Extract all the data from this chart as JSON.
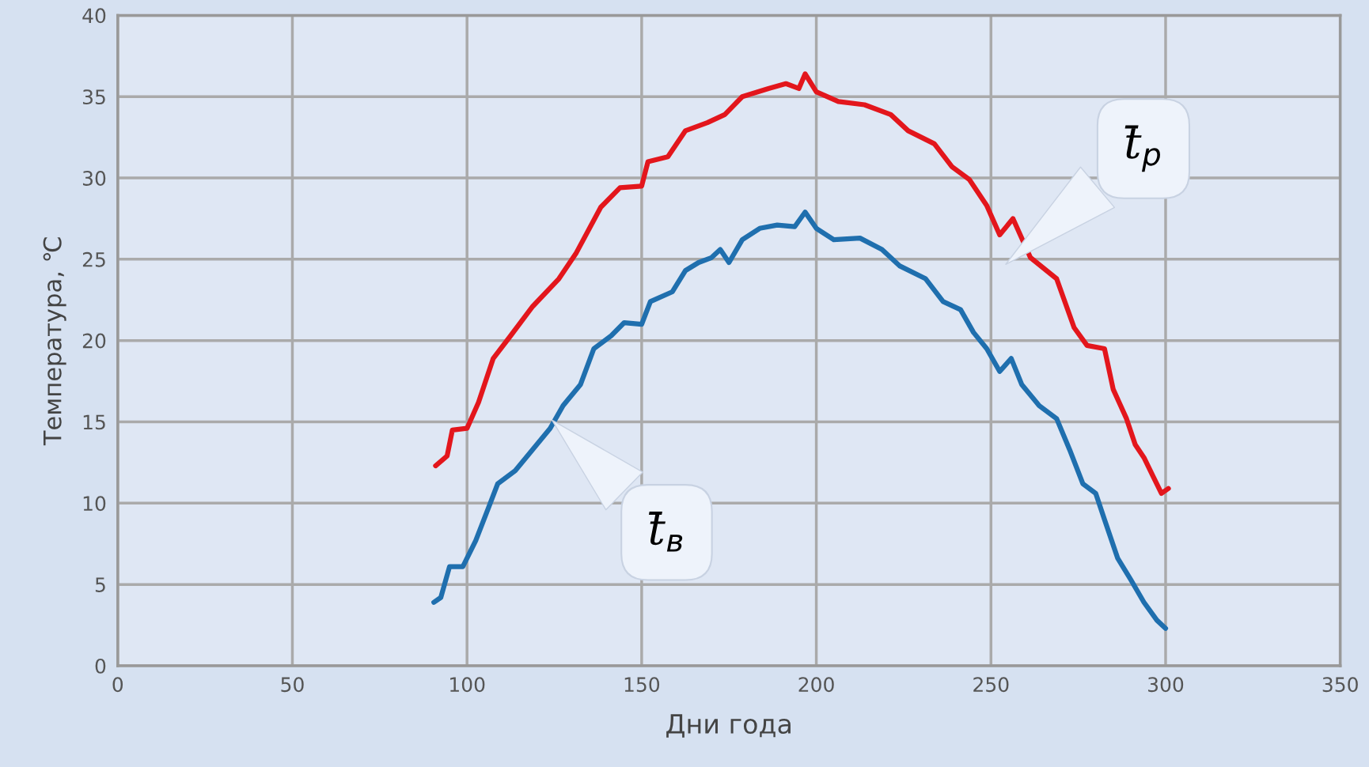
{
  "chart_data": {
    "type": "line",
    "xlabel": "Дни года",
    "ylabel": "Температура, ℃",
    "xlim": [
      0,
      350
    ],
    "xticks": [
      0,
      50,
      100,
      150,
      200,
      250,
      300,
      350
    ],
    "ylim": [
      0,
      40
    ],
    "yticks": [
      0,
      5,
      10,
      15,
      20,
      25,
      30,
      35,
      40
    ],
    "grid": true,
    "marker": "none",
    "line_style": "solid",
    "series": [
      {
        "color": "#e3161c",
        "x": [
          91,
          94.3,
          95.8,
          100,
          103.3,
          107.5,
          112.5,
          118.8,
          126.3,
          131.3,
          138.3,
          143.8,
          150,
          151.8,
          157.5,
          162.5,
          168.8,
          173.8,
          178.8,
          186.3,
          191.3,
          195,
          196.8,
          200,
          206.3,
          213.8,
          221.3,
          226.3,
          233.8,
          238.8,
          243.8,
          248.8,
          252.5,
          256.3,
          261.3,
          268.8,
          273.8,
          277.5,
          282.5,
          285,
          288.8,
          291.3,
          293.8,
          296.3,
          298.8,
          300.8
        ],
        "values": [
          12.3,
          12.9,
          14.5,
          14.6,
          16.2,
          18.9,
          20.3,
          22.1,
          23.8,
          25.4,
          28.2,
          29.4,
          29.5,
          31,
          31.3,
          32.9,
          33.4,
          33.9,
          35,
          35.5,
          35.8,
          35.5,
          36.4,
          35.3,
          34.7,
          34.5,
          33.9,
          32.9,
          32.1,
          30.7,
          29.9,
          28.3,
          26.5,
          27.5,
          25.1,
          23.8,
          20.8,
          19.7,
          19.5,
          17,
          15.2,
          13.6,
          12.8,
          11.7,
          10.6,
          10.9
        ]
      },
      {
        "color": "#1f6fae",
        "x": [
          90.5,
          92.5,
          95,
          98.8,
          102.5,
          106.3,
          108.8,
          113.8,
          118.8,
          123.8,
          127.5,
          132.5,
          136.3,
          141.3,
          145,
          150,
          152.5,
          158.8,
          162.5,
          166.3,
          170,
          172.5,
          175,
          178.8,
          183.8,
          188.8,
          193.8,
          196.8,
          200,
          205,
          212.5,
          218.8,
          223.8,
          231.3,
          236.3,
          241.3,
          245,
          248.8,
          252.5,
          255.8,
          258.8,
          263.8,
          268.8,
          272.5,
          276.3,
          280,
          282.5,
          286.3,
          290,
          293.8,
          297.5,
          300
        ],
        "values": [
          3.9,
          4.2,
          6.1,
          6.1,
          7.7,
          9.8,
          11.2,
          12,
          13.3,
          14.6,
          16,
          17.3,
          19.5,
          20.3,
          21.1,
          21,
          22.4,
          23,
          24.3,
          24.8,
          25.1,
          25.6,
          24.8,
          26.2,
          26.9,
          27.1,
          27,
          27.9,
          26.9,
          26.2,
          26.3,
          25.6,
          24.6,
          23.8,
          22.4,
          21.9,
          20.5,
          19.5,
          18.1,
          18.9,
          17.3,
          16,
          15.2,
          13.3,
          11.2,
          10.6,
          9,
          6.6,
          5.3,
          3.9,
          2.8,
          2.3
        ]
      }
    ],
    "annotations": [
      "t̄$_{p}$",
      "t̄$_{в}$"
    ]
  }
}
